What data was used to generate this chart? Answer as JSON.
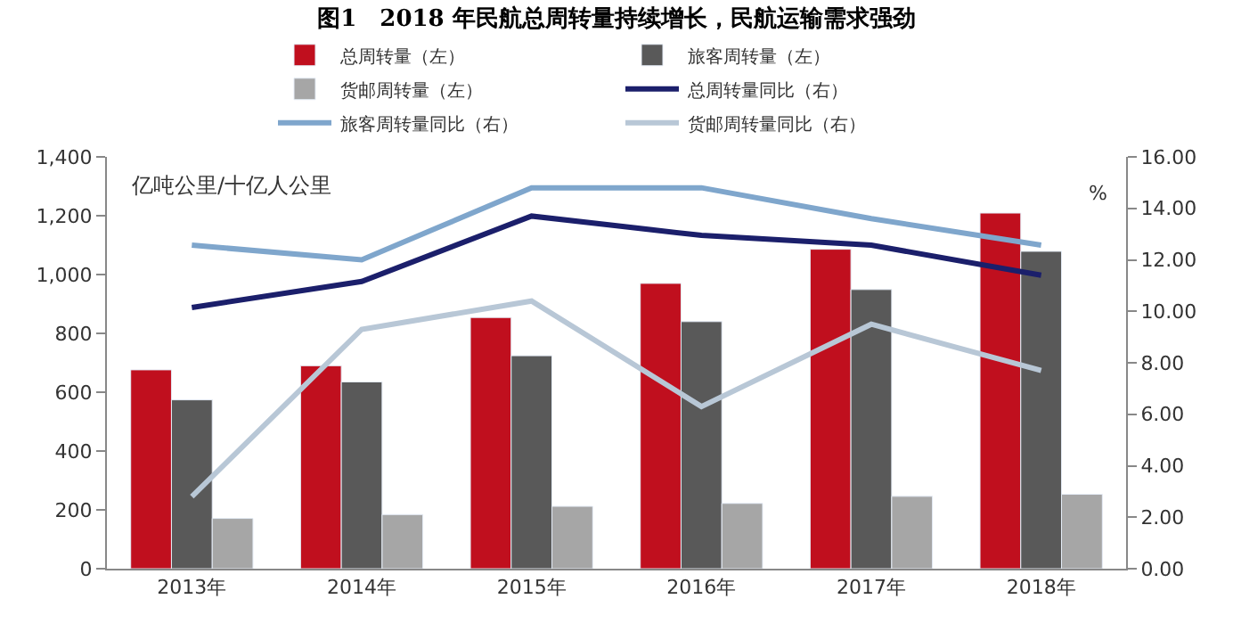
{
  "chart_data": {
    "type": "bar",
    "title": "图1　2018 年民航总周转量持续增长，民航运输需求强劲",
    "categories": [
      "2013年",
      "2014年",
      "2015年",
      "2016年",
      "2017年",
      "2018年"
    ],
    "series": [
      {
        "name": "总周转量（左）",
        "color": "#c00f1e",
        "values": [
          676,
          690,
          854,
          970,
          1086,
          1209
        ]
      },
      {
        "name": "旅客周转量（左）",
        "color": "#595959",
        "values": [
          574,
          635,
          724,
          840,
          949,
          1079
        ]
      },
      {
        "name": "货邮周转量（左）",
        "color": "#a6a6a6",
        "values": [
          171,
          184,
          212,
          222,
          246,
          253
        ]
      },
      {
        "name": "总周转量同比（右）",
        "type": "line",
        "axis": "y2",
        "color": "#1b1f6b",
        "values": [
          10.15,
          11.16,
          13.7,
          12.95,
          12.57,
          11.4
        ]
      },
      {
        "name": "旅客周转量同比（右）",
        "type": "line",
        "axis": "y2",
        "color": "#7fa6cc",
        "values": [
          12.57,
          12.0,
          14.8,
          14.8,
          13.6,
          12.57
        ]
      },
      {
        "name": "货邮周转量同比（右）",
        "type": "line",
        "axis": "y2",
        "color": "#b8c7d6",
        "values": [
          2.8,
          9.3,
          10.4,
          6.3,
          9.5,
          7.7
        ]
      }
    ],
    "ylim": [
      0,
      1400
    ],
    "yticks": [
      0,
      200,
      400,
      600,
      800,
      {
        "value": 1000,
        "label": "1,000"
      },
      {
        "value": 1200,
        "label": "1,200"
      },
      {
        "value": 1400,
        "label": "1,400"
      }
    ],
    "y2lim": [
      0,
      16
    ],
    "y2ticks": [
      {
        "value": 0,
        "label": "0.00"
      },
      {
        "value": 2,
        "label": "2.00"
      },
      {
        "value": 4,
        "label": "4.00"
      },
      {
        "value": 6,
        "label": "6.00"
      },
      {
        "value": 8,
        "label": "8.00"
      },
      {
        "value": 10,
        "label": "10.00"
      },
      {
        "value": 12,
        "label": "12.00"
      },
      {
        "value": 14,
        "label": "14.00"
      },
      {
        "value": 16,
        "label": "16.00"
      }
    ],
    "ylabel": "亿吨公里/十亿人公里",
    "y2label": "%",
    "legend": "top",
    "marker": "none",
    "line_style": "solid"
  }
}
